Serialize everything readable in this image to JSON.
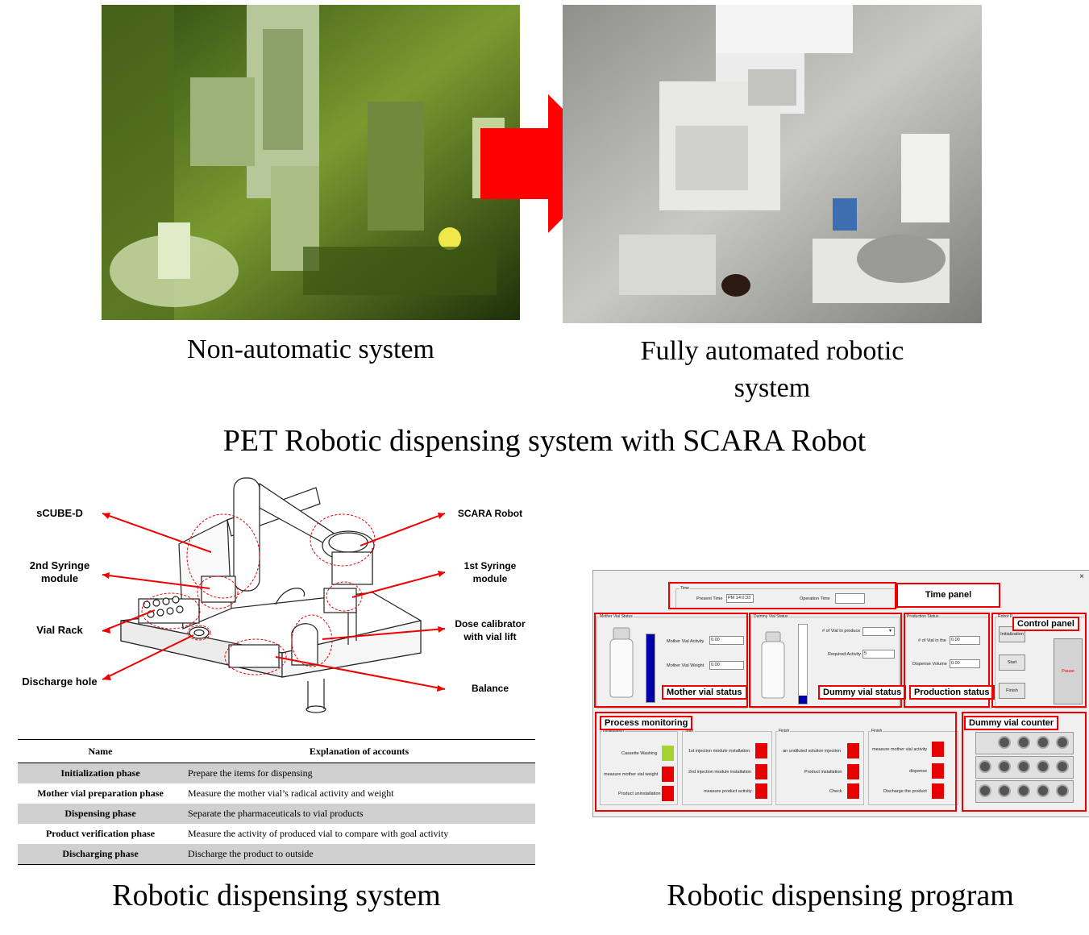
{
  "top": {
    "left_caption": "Non-automatic system",
    "right_caption_line1": "Fully automated robotic",
    "right_caption_line2": "system",
    "main_title": "PET Robotic dispensing system with SCARA Robot"
  },
  "diagram": {
    "labels": {
      "scube": "sCUBE-D",
      "syringe2": "2nd Syringe module",
      "vial_rack": "Vial Rack",
      "discharge": "Discharge hole",
      "scara": "SCARA Robot",
      "syringe1": "1st Syringe module",
      "dose": "Dose calibrator with vial lift",
      "balance": "Balance"
    }
  },
  "table": {
    "headers": [
      "Name",
      "Explanation of accounts"
    ],
    "rows": [
      {
        "name": "Initialization phase",
        "explanation": "Prepare the items for dispensing"
      },
      {
        "name": "Mother vial preparation phase",
        "explanation": "Measure the mother vial’s radical activity and weight"
      },
      {
        "name": "Dispensing phase",
        "explanation": "Separate the pharmaceuticals to vial products"
      },
      {
        "name": "Product verification phase",
        "explanation": "Measure the activity of produced vial to compare with goal activity"
      },
      {
        "name": "Discharging phase",
        "explanation": "Discharge the product to outside"
      }
    ]
  },
  "bottom_captions": {
    "left": "Robotic dispensing system",
    "right": "Robotic dispensing program"
  },
  "program": {
    "close": "×",
    "time": {
      "group": "Time",
      "present_label": "Present Time",
      "present_value": "PM 14:0:33",
      "operation_label": "Operation Time",
      "operation_value": ""
    },
    "mother": {
      "group": "Mother Vial Status",
      "activity_label": "Mother Vial Activity",
      "activity_value": "0.00",
      "weight_label": "Mother Vial Weight",
      "weight_value": "0.00"
    },
    "dummy": {
      "group": "Dummy Vial Status",
      "produce_label": "# of Vial to produce",
      "produce_value": "",
      "required_label": "Required Activity",
      "required_value": "5"
    },
    "production": {
      "group": "Production Status",
      "vials_label": "# of Vial in the",
      "vials_value": "0.00",
      "volume_label": "Dispense Volume",
      "volume_value": "0.00"
    },
    "robot": {
      "group": "Robot P",
      "init": "Initialization",
      "start": "Start",
      "finish": "Finish",
      "pause": "Pause"
    },
    "process": {
      "initialization": {
        "title": "Initialization",
        "items": [
          "Cassette Washing",
          "measure mother vial weight",
          "Product uninstallation"
        ]
      },
      "start": {
        "title": "Start",
        "items": [
          "1st injection module installation",
          "2nd injection module installation",
          "measure product activity"
        ]
      },
      "finish1": {
        "title": "Finish",
        "items": [
          "an undiluted solution injection",
          "Product installation",
          "Check"
        ]
      },
      "finish2": {
        "title": "Finish",
        "items": [
          "measure mother vial activity",
          "dispense",
          "Discharge the product"
        ]
      }
    },
    "tags": {
      "time_panel": "Time panel",
      "control_panel": "Control panel",
      "mother_status": "Mother vial status",
      "dummy_status": "Dummy vial status",
      "production_status": "Production status",
      "process_monitoring": "Process monitoring",
      "dummy_counter": "Dummy vial counter"
    },
    "colors": {
      "red": "#e60000",
      "green": "#a6d232",
      "blue": "#0000a8"
    }
  }
}
